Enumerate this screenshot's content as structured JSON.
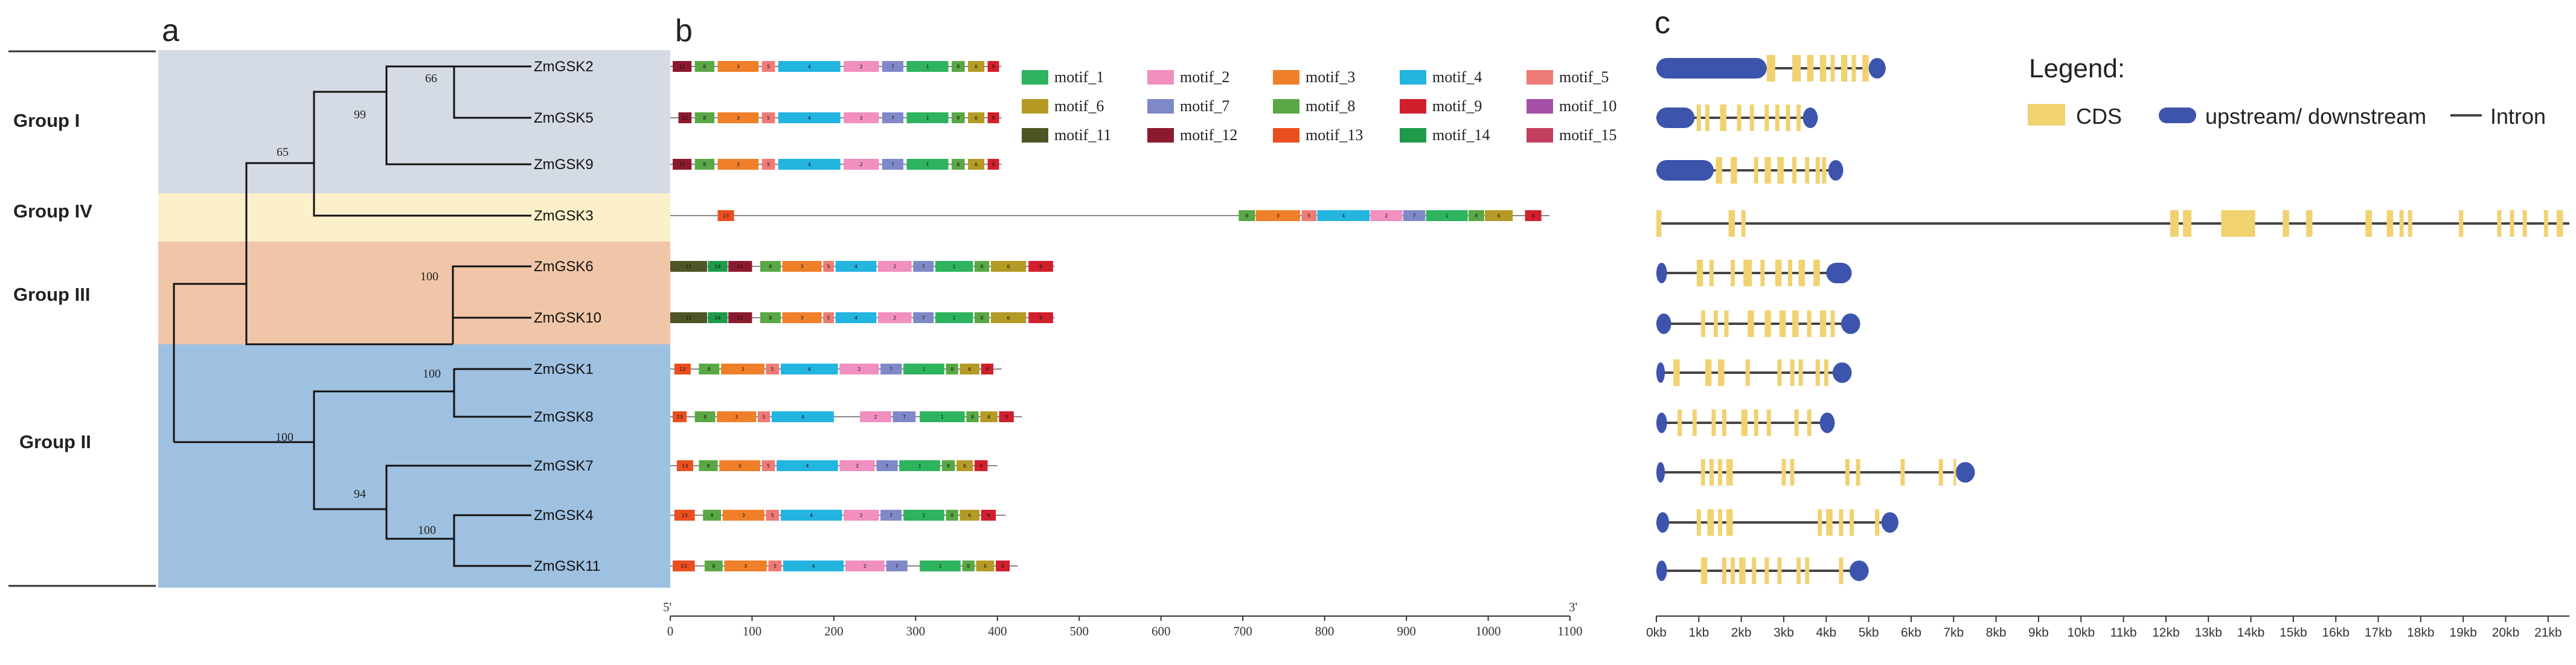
{
  "panels": {
    "a": "a",
    "b": "b",
    "c": "c"
  },
  "tree": {
    "groups": [
      {
        "name": "Group I",
        "color": "#d5dbe5"
      },
      {
        "name": "Group IV",
        "color": "#fbf0c9"
      },
      {
        "name": "Group III",
        "color": "#f1c6a8"
      },
      {
        "name": "Group II",
        "color": "#9fc1e1"
      }
    ],
    "leaves": [
      "ZmGSK2",
      "ZmGSK5",
      "ZmGSK9",
      "ZmGSK3",
      "ZmGSK6",
      "ZmGSK10",
      "ZmGSK1",
      "ZmGSK8",
      "ZmGSK7",
      "ZmGSK4",
      "ZmGSK11"
    ],
    "bootstrap": [
      "66",
      "99",
      "65",
      "100",
      "100",
      "100",
      "94",
      "100"
    ]
  },
  "motifs": {
    "legend": [
      {
        "name": "motif_1",
        "color": "#2eb35f"
      },
      {
        "name": "motif_2",
        "color": "#f08fc0"
      },
      {
        "name": "motif_3",
        "color": "#f07f2a"
      },
      {
        "name": "motif_4",
        "color": "#24b4e0"
      },
      {
        "name": "motif_5",
        "color": "#ee7b76"
      },
      {
        "name": "motif_6",
        "color": "#b59a26"
      },
      {
        "name": "motif_7",
        "color": "#8089c8"
      },
      {
        "name": "motif_8",
        "color": "#5aa845"
      },
      {
        "name": "motif_9",
        "color": "#d0202d"
      },
      {
        "name": "motif_10",
        "color": "#a550a7"
      },
      {
        "name": "motif_11",
        "color": "#4d5524"
      },
      {
        "name": "motif_12",
        "color": "#8c1a2e"
      },
      {
        "name": "motif_13",
        "color": "#ea4e1f"
      },
      {
        "name": "motif_14",
        "color": "#1f9a4b"
      },
      {
        "name": "motif_15",
        "color": "#c2405d"
      }
    ],
    "axis": {
      "min": 0,
      "max": 1100,
      "ticks": [
        "0",
        "100",
        "200",
        "300",
        "400",
        "500",
        "600",
        "700",
        "800",
        "900",
        "1000",
        "1100"
      ],
      "five_prime": "5'",
      "three_prime": "3'"
    },
    "lengths": [
      405,
      405,
      405,
      1075,
      470,
      470,
      405,
      430,
      400,
      410,
      425
    ],
    "rows": [
      [
        [
          3,
          26,
          12
        ],
        [
          30,
          54,
          8
        ],
        [
          58,
          108,
          3
        ],
        [
          112,
          128,
          5
        ],
        [
          132,
          208,
          4
        ],
        [
          212,
          255,
          2
        ],
        [
          259,
          285,
          7
        ],
        [
          289,
          340,
          1
        ],
        [
          344,
          360,
          8
        ],
        [
          364,
          384,
          6
        ],
        [
          388,
          402,
          9
        ]
      ],
      [
        [
          10,
          26,
          12
        ],
        [
          30,
          54,
          8
        ],
        [
          58,
          108,
          3
        ],
        [
          112,
          128,
          5
        ],
        [
          132,
          208,
          4
        ],
        [
          212,
          255,
          2
        ],
        [
          259,
          285,
          7
        ],
        [
          289,
          340,
          1
        ],
        [
          344,
          360,
          8
        ],
        [
          364,
          384,
          6
        ],
        [
          388,
          402,
          9
        ]
      ],
      [
        [
          3,
          26,
          12
        ],
        [
          30,
          54,
          8
        ],
        [
          58,
          108,
          3
        ],
        [
          112,
          128,
          5
        ],
        [
          132,
          208,
          4
        ],
        [
          212,
          255,
          2
        ],
        [
          259,
          285,
          7
        ],
        [
          289,
          340,
          1
        ],
        [
          344,
          360,
          8
        ],
        [
          364,
          384,
          6
        ],
        [
          388,
          402,
          9
        ]
      ],
      [
        [
          58,
          78,
          13
        ],
        [
          695,
          715,
          8
        ],
        [
          716,
          770,
          3
        ],
        [
          772,
          790,
          5
        ],
        [
          791,
          855,
          4
        ],
        [
          856,
          895,
          2
        ],
        [
          896,
          923,
          7
        ],
        [
          924,
          975,
          1
        ],
        [
          976,
          995,
          8
        ],
        [
          996,
          1030,
          6
        ],
        [
          1045,
          1065,
          9
        ]
      ],
      [
        [
          0,
          45,
          11
        ],
        [
          46,
          70,
          14
        ],
        [
          71,
          100,
          12
        ],
        [
          110,
          135,
          8
        ],
        [
          137,
          185,
          3
        ],
        [
          187,
          200,
          5
        ],
        [
          202,
          252,
          4
        ],
        [
          254,
          295,
          2
        ],
        [
          297,
          322,
          7
        ],
        [
          324,
          370,
          1
        ],
        [
          372,
          390,
          8
        ],
        [
          392,
          435,
          6
        ],
        [
          438,
          468,
          9
        ]
      ],
      [
        [
          0,
          45,
          11
        ],
        [
          46,
          70,
          14
        ],
        [
          71,
          100,
          12
        ],
        [
          110,
          135,
          8
        ],
        [
          137,
          185,
          3
        ],
        [
          187,
          200,
          5
        ],
        [
          202,
          252,
          4
        ],
        [
          254,
          295,
          2
        ],
        [
          297,
          322,
          7
        ],
        [
          324,
          370,
          1
        ],
        [
          372,
          390,
          8
        ],
        [
          392,
          435,
          6
        ],
        [
          438,
          468,
          9
        ]
      ],
      [
        [
          5,
          25,
          13
        ],
        [
          35,
          60,
          8
        ],
        [
          62,
          115,
          3
        ],
        [
          117,
          133,
          5
        ],
        [
          135,
          205,
          4
        ],
        [
          207,
          255,
          2
        ],
        [
          257,
          283,
          7
        ],
        [
          285,
          335,
          1
        ],
        [
          337,
          352,
          8
        ],
        [
          354,
          378,
          6
        ],
        [
          380,
          395,
          9
        ]
      ],
      [
        [
          3,
          20,
          13
        ],
        [
          30,
          55,
          8
        ],
        [
          57,
          105,
          3
        ],
        [
          107,
          122,
          5
        ],
        [
          124,
          200,
          4
        ],
        [
          232,
          270,
          2
        ],
        [
          272,
          300,
          7
        ],
        [
          305,
          360,
          1
        ],
        [
          362,
          377,
          8
        ],
        [
          379,
          400,
          6
        ],
        [
          402,
          420,
          9
        ]
      ],
      [
        [
          8,
          28,
          13
        ],
        [
          35,
          58,
          8
        ],
        [
          60,
          110,
          3
        ],
        [
          112,
          128,
          5
        ],
        [
          130,
          205,
          4
        ],
        [
          207,
          250,
          2
        ],
        [
          252,
          278,
          7
        ],
        [
          280,
          330,
          1
        ],
        [
          332,
          348,
          8
        ],
        [
          350,
          370,
          6
        ],
        [
          372,
          388,
          9
        ]
      ],
      [
        [
          5,
          30,
          13
        ],
        [
          40,
          62,
          8
        ],
        [
          64,
          115,
          3
        ],
        [
          117,
          133,
          5
        ],
        [
          135,
          210,
          4
        ],
        [
          212,
          255,
          2
        ],
        [
          257,
          283,
          7
        ],
        [
          285,
          335,
          1
        ],
        [
          337,
          352,
          8
        ],
        [
          354,
          378,
          6
        ],
        [
          380,
          398,
          9
        ]
      ],
      [
        [
          3,
          30,
          13
        ],
        [
          42,
          64,
          8
        ],
        [
          66,
          118,
          3
        ],
        [
          120,
          136,
          5
        ],
        [
          138,
          212,
          4
        ],
        [
          214,
          262,
          2
        ],
        [
          264,
          290,
          7
        ],
        [
          305,
          355,
          1
        ],
        [
          357,
          372,
          8
        ],
        [
          374,
          396,
          6
        ],
        [
          398,
          415,
          9
        ]
      ]
    ]
  },
  "gene": {
    "legend_title": "Legend:",
    "legend_items": [
      "CDS",
      "upstream/ downstream",
      "Intron"
    ],
    "colors": {
      "cds": "#f0d271",
      "utr": "#3d54ad",
      "intron": "#444444"
    },
    "axis": {
      "min": 0,
      "max": 21.5,
      "ticks": [
        "0kb",
        "1kb",
        "2kb",
        "3kb",
        "4kb",
        "5kb",
        "6kb",
        "7kb",
        "8kb",
        "9kb",
        "10kb",
        "11kb",
        "12kb",
        "13kb",
        "14kb",
        "15kb",
        "16kb",
        "17kb",
        "18kb",
        "19kb",
        "20kb",
        "21kb"
      ]
    },
    "genes": [
      {
        "len": 5.4,
        "utr": [
          [
            0,
            2.6
          ],
          [
            5.0,
            5.4
          ]
        ],
        "cds": [
          [
            2.6,
            2.8
          ],
          [
            3.2,
            3.4
          ],
          [
            3.55,
            3.7
          ],
          [
            3.85,
            4.0
          ],
          [
            4.1,
            4.2
          ],
          [
            4.35,
            4.5
          ],
          [
            4.6,
            4.7
          ],
          [
            4.85,
            5.0
          ]
        ]
      },
      {
        "len": 3.8,
        "utr": [
          [
            0,
            0.9
          ],
          [
            3.45,
            3.8
          ]
        ],
        "cds": [
          [
            0.95,
            1.05
          ],
          [
            1.15,
            1.25
          ],
          [
            1.5,
            1.65
          ],
          [
            1.9,
            2.0
          ],
          [
            2.2,
            2.3
          ],
          [
            2.55,
            2.65
          ],
          [
            2.8,
            2.9
          ],
          [
            3.05,
            3.15
          ],
          [
            3.3,
            3.4
          ]
        ]
      },
      {
        "len": 4.4,
        "utr": [
          [
            0,
            1.35
          ],
          [
            4.05,
            4.4
          ]
        ],
        "cds": [
          [
            1.4,
            1.55
          ],
          [
            1.75,
            1.9
          ],
          [
            2.3,
            2.4
          ],
          [
            2.55,
            2.7
          ],
          [
            2.85,
            3.0
          ],
          [
            3.2,
            3.3
          ],
          [
            3.5,
            3.6
          ],
          [
            3.75,
            3.85
          ],
          [
            3.9,
            4.0
          ]
        ]
      },
      {
        "len": 21.5,
        "utr": [],
        "cds": [
          [
            0,
            0.12
          ],
          [
            1.7,
            1.85
          ],
          [
            2.0,
            2.1
          ],
          [
            12.1,
            12.3
          ],
          [
            12.4,
            12.6
          ],
          [
            13.3,
            14.1
          ],
          [
            14.75,
            14.9
          ],
          [
            15.3,
            15.45
          ],
          [
            16.7,
            16.85
          ],
          [
            17.2,
            17.35
          ],
          [
            17.5,
            17.6
          ],
          [
            17.7,
            17.8
          ],
          [
            18.9,
            19.0
          ],
          [
            19.8,
            19.9
          ],
          [
            20.1,
            20.2
          ],
          [
            20.4,
            20.5
          ],
          [
            20.9,
            21.0
          ],
          [
            21.2,
            21.35
          ]
        ]
      },
      {
        "len": 4.6,
        "utr": [
          [
            0,
            0.25
          ],
          [
            4.0,
            4.6
          ]
        ],
        "cds": [
          [
            0.95,
            1.1
          ],
          [
            1.25,
            1.35
          ],
          [
            1.75,
            1.85
          ],
          [
            2.05,
            2.25
          ],
          [
            2.45,
            2.55
          ],
          [
            2.8,
            2.95
          ],
          [
            3.1,
            3.2
          ],
          [
            3.35,
            3.5
          ],
          [
            3.7,
            3.85
          ]
        ]
      },
      {
        "len": 4.8,
        "utr": [
          [
            0,
            0.35
          ],
          [
            4.35,
            4.8
          ]
        ],
        "cds": [
          [
            1.05,
            1.15
          ],
          [
            1.35,
            1.45
          ],
          [
            1.6,
            1.7
          ],
          [
            2.15,
            2.3
          ],
          [
            2.55,
            2.7
          ],
          [
            2.9,
            3.05
          ],
          [
            3.2,
            3.35
          ],
          [
            3.55,
            3.65
          ],
          [
            3.85,
            4.0
          ],
          [
            4.1,
            4.2
          ]
        ]
      },
      {
        "len": 4.6,
        "utr": [
          [
            0,
            0.2
          ],
          [
            4.15,
            4.6
          ]
        ],
        "cds": [
          [
            0.4,
            0.55
          ],
          [
            1.15,
            1.3
          ],
          [
            1.45,
            1.6
          ],
          [
            2.1,
            2.2
          ],
          [
            2.85,
            2.95
          ],
          [
            3.15,
            3.25
          ],
          [
            3.35,
            3.45
          ],
          [
            3.75,
            3.85
          ],
          [
            3.95,
            4.05
          ]
        ]
      },
      {
        "len": 4.2,
        "utr": [
          [
            0,
            0.25
          ],
          [
            3.85,
            4.2
          ]
        ],
        "cds": [
          [
            0.5,
            0.6
          ],
          [
            0.85,
            0.95
          ],
          [
            1.3,
            1.4
          ],
          [
            1.55,
            1.65
          ],
          [
            2.0,
            2.15
          ],
          [
            2.3,
            2.4
          ],
          [
            2.6,
            2.7
          ],
          [
            3.25,
            3.35
          ],
          [
            3.55,
            3.65
          ]
        ]
      },
      {
        "len": 7.5,
        "utr": [
          [
            0,
            0.2
          ],
          [
            7.05,
            7.5
          ]
        ],
        "cds": [
          [
            1.05,
            1.15
          ],
          [
            1.25,
            1.35
          ],
          [
            1.45,
            1.55
          ],
          [
            1.65,
            1.8
          ],
          [
            2.95,
            3.05
          ],
          [
            3.15,
            3.25
          ],
          [
            4.45,
            4.55
          ],
          [
            4.7,
            4.8
          ],
          [
            5.75,
            5.85
          ],
          [
            6.65,
            6.75
          ],
          [
            7.0,
            7.05
          ]
        ]
      },
      {
        "len": 5.7,
        "utr": [
          [
            0,
            0.3
          ],
          [
            5.3,
            5.7
          ]
        ],
        "cds": [
          [
            0.95,
            1.05
          ],
          [
            1.2,
            1.35
          ],
          [
            1.45,
            1.55
          ],
          [
            1.65,
            1.8
          ],
          [
            3.8,
            3.9
          ],
          [
            4.0,
            4.15
          ],
          [
            4.3,
            4.4
          ],
          [
            4.55,
            4.65
          ],
          [
            5.15,
            5.25
          ]
        ]
      },
      {
        "len": 5.0,
        "utr": [
          [
            0,
            0.25
          ],
          [
            4.55,
            5.0
          ]
        ],
        "cds": [
          [
            1.05,
            1.2
          ],
          [
            1.55,
            1.65
          ],
          [
            1.75,
            1.85
          ],
          [
            1.95,
            2.1
          ],
          [
            2.25,
            2.35
          ],
          [
            2.55,
            2.65
          ],
          [
            2.85,
            2.95
          ],
          [
            3.3,
            3.4
          ],
          [
            3.5,
            3.6
          ],
          [
            4.3,
            4.4
          ]
        ]
      }
    ]
  }
}
